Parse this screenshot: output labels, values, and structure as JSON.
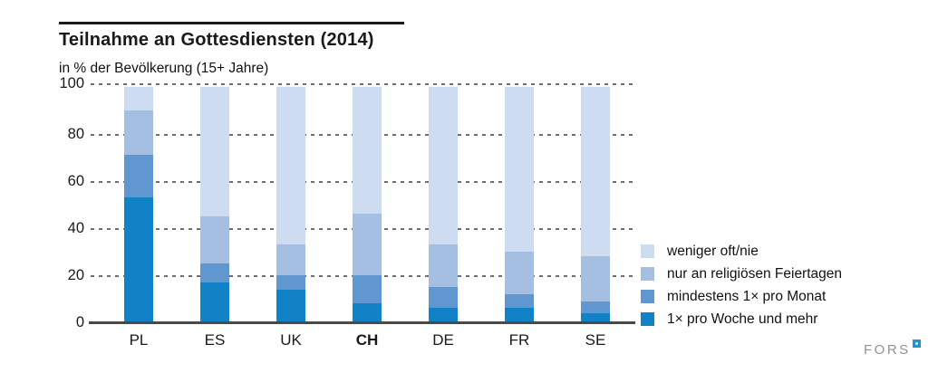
{
  "header": {
    "title": "Teilnahme an Gottesdiensten (2014)",
    "subtitle": "in % der Bevölkerung (15+ Jahre)"
  },
  "footer": {
    "logo_text": "FORS"
  },
  "chart_data": {
    "type": "bar",
    "stacked": true,
    "title": "Teilnahme an Gottesdiensten (2014)",
    "subtitle": "in % der Bevölkerung (15+ Jahre)",
    "categories": [
      "PL",
      "ES",
      "UK",
      "CH",
      "DE",
      "FR",
      "SE"
    ],
    "highlighted_category": "CH",
    "series": [
      {
        "name": "1× pro Woche und mehr",
        "color": "#1082c5",
        "values": [
          53,
          17,
          14,
          8,
          6,
          6,
          4
        ]
      },
      {
        "name": "mindestens 1× pro Monat",
        "color": "#6197d0",
        "values": [
          18,
          8,
          6,
          12,
          9,
          6,
          5
        ]
      },
      {
        "name": "nur an religiösen Feiertagen",
        "color": "#a4bfe2",
        "values": [
          19,
          20,
          13,
          26,
          18,
          18,
          19
        ]
      },
      {
        "name": "weniger oft/nie",
        "color": "#cedcf1",
        "values": [
          10,
          55,
          67,
          54,
          67,
          70,
          72
        ]
      }
    ],
    "ylim": [
      0,
      100
    ],
    "yticks": [
      0,
      20,
      40,
      60,
      80,
      100
    ],
    "grid": "dashed-horizontal",
    "legend_position": "right",
    "legend_order": "top-lightest-to-bottom-darkest"
  },
  "layout_colors": {
    "axis_line": "#4a4a4a",
    "grid_dash": "#6e6e6e",
    "text": "#1a1a1a",
    "logo_gray": "#8f9193",
    "logo_blue": "#1b96d4"
  }
}
